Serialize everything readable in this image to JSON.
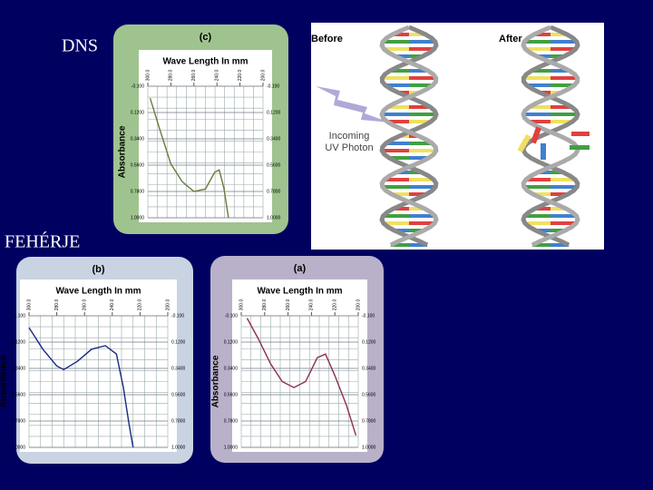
{
  "slide": {
    "left_labels": [
      "DNS",
      "FEHÉRJE"
    ]
  },
  "diagram": {
    "before": "Before",
    "after": "After",
    "arrow_label_1": "Incoming",
    "arrow_label_2": "UV Photon"
  },
  "chart_data": [
    {
      "type": "line",
      "title": "(c)",
      "xlabel": "Wave Length In mm",
      "ylabel": "Absorbance",
      "background": "#9fc38f",
      "color": "#6b7a3a",
      "x": [
        298,
        290,
        280,
        270,
        260,
        250,
        242,
        238,
        234,
        230
      ],
      "values": [
        0.0,
        0.25,
        0.55,
        0.7,
        0.78,
        0.76,
        0.62,
        0.6,
        0.75,
        1.0
      ],
      "xlim": [
        300,
        200
      ],
      "ylim": [
        1.0,
        -0.1
      ],
      "xticks": [
        {
          "value": 300,
          "label": "300.0"
        },
        {
          "value": 280,
          "label": "280.0"
        },
        {
          "value": 260,
          "label": "260.0"
        },
        {
          "value": 240,
          "label": "240.0"
        },
        {
          "value": 220,
          "label": "220.0"
        },
        {
          "value": 200,
          "label": "200.0"
        }
      ],
      "yticks": [
        {
          "value": -0.1,
          "label": "-0.100"
        },
        {
          "value": 0.12,
          "label": "0.1200"
        },
        {
          "value": 0.34,
          "label": "0.3400"
        },
        {
          "value": 0.56,
          "label": "0.5600"
        },
        {
          "value": 0.78,
          "label": "0.7800"
        },
        {
          "value": 1.0,
          "label": "1.0000"
        }
      ]
    },
    {
      "type": "line",
      "title": "(b)",
      "xlabel": "Wave Length In mm",
      "ylabel": "Absorbance",
      "background": "#c9d3e2",
      "color": "#1a2a80",
      "x": [
        300,
        290,
        280,
        275,
        265,
        255,
        245,
        237,
        232,
        228,
        225
      ],
      "values": [
        0.0,
        0.18,
        0.32,
        0.35,
        0.28,
        0.18,
        0.15,
        0.22,
        0.5,
        0.8,
        1.0
      ],
      "xlim": [
        300,
        200
      ],
      "ylim": [
        1.0,
        -0.1
      ],
      "xticks": [
        {
          "value": 300,
          "label": "300.0"
        },
        {
          "value": 280,
          "label": "280.0"
        },
        {
          "value": 260,
          "label": "260.0"
        },
        {
          "value": 240,
          "label": "240.0"
        },
        {
          "value": 220,
          "label": "220.0"
        },
        {
          "value": 200,
          "label": "200.0"
        }
      ],
      "yticks": [
        {
          "value": -0.1,
          "label": "-0.100"
        },
        {
          "value": 0.12,
          "label": "0.1200"
        },
        {
          "value": 0.34,
          "label": "0.3400"
        },
        {
          "value": 0.56,
          "label": "0.5600"
        },
        {
          "value": 0.78,
          "label": "0.7800"
        },
        {
          "value": 1.0,
          "label": "1.0000"
        }
      ]
    },
    {
      "type": "line",
      "title": "(a)",
      "xlabel": "Wave Length In mm",
      "ylabel": "Absorbance",
      "background": "#b9b1c9",
      "color": "#8a3050",
      "x": [
        295,
        285,
        275,
        265,
        255,
        245,
        235,
        228,
        220,
        210,
        202
      ],
      "values": [
        -0.08,
        0.1,
        0.3,
        0.45,
        0.5,
        0.45,
        0.25,
        0.22,
        0.4,
        0.65,
        0.9
      ],
      "xlim": [
        300,
        200
      ],
      "ylim": [
        1.0,
        -0.1
      ],
      "xticks": [
        {
          "value": 300,
          "label": "300.0"
        },
        {
          "value": 280,
          "label": "280.0"
        },
        {
          "value": 260,
          "label": "260.0"
        },
        {
          "value": 240,
          "label": "240.0"
        },
        {
          "value": 220,
          "label": "220.0"
        },
        {
          "value": 200,
          "label": "200.0"
        }
      ],
      "yticks": [
        {
          "value": -0.1,
          "label": "-0.100"
        },
        {
          "value": 0.12,
          "label": "0.1200"
        },
        {
          "value": 0.34,
          "label": "0.3400"
        },
        {
          "value": 0.56,
          "label": "0.5600"
        },
        {
          "value": 0.78,
          "label": "0.7800"
        },
        {
          "value": 1.0,
          "label": "1.0000"
        }
      ]
    }
  ]
}
